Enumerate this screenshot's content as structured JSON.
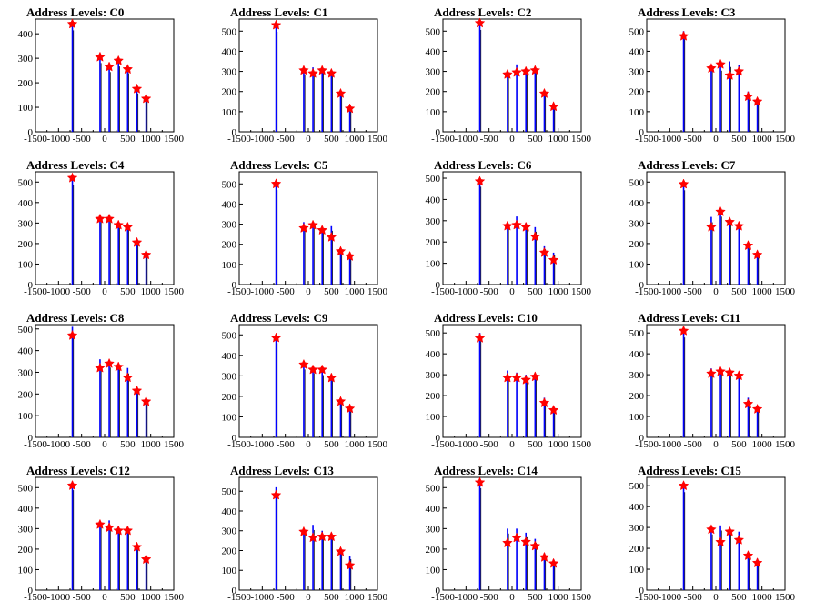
{
  "colors": {
    "spike": "#0000ff",
    "marker": "#ff0000",
    "secondary": "#000000",
    "axis": "#000000"
  },
  "chart_data": [
    {
      "type": "bar",
      "title": "Address Levels: C0",
      "xlim": [
        -1500,
        1500
      ],
      "xticks": [
        "-1500",
        "-1000",
        "-500",
        "0",
        "500",
        "1000",
        "1500"
      ],
      "ylim": [
        0,
        460
      ],
      "yticks": [
        "0",
        "100",
        "200",
        "300",
        "400"
      ],
      "x": [
        -700,
        -100,
        100,
        300,
        500,
        700,
        900
      ],
      "values": [
        450,
        305,
        265,
        290,
        260,
        170,
        135
      ],
      "peaks": [
        [
          -700,
          440
        ],
        [
          -100,
          305
        ],
        [
          100,
          265
        ],
        [
          300,
          290
        ],
        [
          500,
          255
        ],
        [
          700,
          175
        ],
        [
          900,
          135
        ]
      ]
    },
    {
      "type": "bar",
      "title": "Address Levels: C1",
      "xlim": [
        -1500,
        1500
      ],
      "xticks": [
        "-1500",
        "-1000",
        "-500",
        "0",
        "500",
        "1000",
        "1500"
      ],
      "ylim": [
        0,
        560
      ],
      "yticks": [
        "0",
        "100",
        "200",
        "300",
        "400",
        "500"
      ],
      "x": [
        -700,
        -100,
        100,
        300,
        500,
        700,
        900
      ],
      "values": [
        540,
        310,
        320,
        320,
        300,
        200,
        120
      ],
      "peaks": [
        [
          -700,
          530
        ],
        [
          -100,
          305
        ],
        [
          100,
          290
        ],
        [
          300,
          305
        ],
        [
          500,
          290
        ],
        [
          700,
          190
        ],
        [
          900,
          115
        ]
      ]
    },
    {
      "type": "bar",
      "title": "Address Levels: C2",
      "xlim": [
        -1500,
        1500
      ],
      "xticks": [
        "-1500",
        "-1000",
        "-500",
        "0",
        "500",
        "1000",
        "1500"
      ],
      "ylim": [
        0,
        560
      ],
      "yticks": [
        "0",
        "100",
        "200",
        "300",
        "400",
        "500"
      ],
      "x": [
        -700,
        -100,
        100,
        300,
        500,
        700,
        900
      ],
      "values": [
        550,
        300,
        335,
        310,
        320,
        200,
        130
      ],
      "peaks": [
        [
          -700,
          540
        ],
        [
          -100,
          285
        ],
        [
          100,
          295
        ],
        [
          300,
          300
        ],
        [
          500,
          305
        ],
        [
          700,
          190
        ],
        [
          900,
          125
        ]
      ]
    },
    {
      "type": "bar",
      "title": "Address Levels: C3",
      "xlim": [
        -1500,
        1500
      ],
      "xticks": [
        "-1500",
        "-1000",
        "-500",
        "0",
        "500",
        "1000",
        "1500"
      ],
      "ylim": [
        0,
        560
      ],
      "yticks": [
        "0",
        "100",
        "200",
        "300",
        "400",
        "500"
      ],
      "x": [
        -700,
        -100,
        100,
        300,
        500,
        700,
        900
      ],
      "values": [
        500,
        330,
        330,
        350,
        330,
        200,
        160
      ],
      "peaks": [
        [
          -700,
          475
        ],
        [
          -100,
          315
        ],
        [
          100,
          335
        ],
        [
          300,
          280
        ],
        [
          500,
          300
        ],
        [
          700,
          175
        ],
        [
          900,
          150
        ]
      ]
    },
    {
      "type": "bar",
      "title": "Address Levels: C4",
      "xlim": [
        -1500,
        1500
      ],
      "xticks": [
        "-1500",
        "-1000",
        "-500",
        "0",
        "500",
        "1000",
        "1500"
      ],
      "ylim": [
        0,
        550
      ],
      "yticks": [
        "0",
        "100",
        "200",
        "300",
        "400",
        "500"
      ],
      "x": [
        -700,
        -100,
        100,
        300,
        500,
        700,
        900
      ],
      "values": [
        530,
        330,
        330,
        300,
        290,
        210,
        150
      ],
      "peaks": [
        [
          -700,
          520
        ],
        [
          -100,
          320
        ],
        [
          100,
          320
        ],
        [
          300,
          290
        ],
        [
          500,
          280
        ],
        [
          700,
          205
        ],
        [
          900,
          145
        ]
      ]
    },
    {
      "type": "bar",
      "title": "Address Levels: C5",
      "xlim": [
        -1500,
        1500
      ],
      "xticks": [
        "-1500",
        "-1000",
        "-500",
        "0",
        "500",
        "1000",
        "1500"
      ],
      "ylim": [
        0,
        560
      ],
      "yticks": [
        "0",
        "100",
        "200",
        "300",
        "400",
        "500"
      ],
      "x": [
        -700,
        -100,
        100,
        300,
        500,
        700,
        900
      ],
      "values": [
        510,
        310,
        310,
        290,
        290,
        180,
        150
      ],
      "peaks": [
        [
          -700,
          500
        ],
        [
          -100,
          280
        ],
        [
          100,
          295
        ],
        [
          300,
          270
        ],
        [
          500,
          235
        ],
        [
          700,
          165
        ],
        [
          900,
          140
        ]
      ]
    },
    {
      "type": "bar",
      "title": "Address Levels: C6",
      "xlim": [
        -1500,
        1500
      ],
      "xticks": [
        "-1500",
        "-1000",
        "-500",
        "0",
        "500",
        "1000",
        "1500"
      ],
      "ylim": [
        0,
        530
      ],
      "yticks": [
        "0",
        "100",
        "200",
        "300",
        "400",
        "500"
      ],
      "x": [
        -700,
        -100,
        100,
        300,
        500,
        700,
        900
      ],
      "values": [
        500,
        290,
        320,
        290,
        270,
        180,
        150
      ],
      "peaks": [
        [
          -700,
          485
        ],
        [
          -100,
          275
        ],
        [
          100,
          280
        ],
        [
          300,
          270
        ],
        [
          500,
          225
        ],
        [
          700,
          150
        ],
        [
          900,
          115
        ]
      ]
    },
    {
      "type": "bar",
      "title": "Address Levels: C7",
      "xlim": [
        -1500,
        1500
      ],
      "xticks": [
        "-1500",
        "-1000",
        "-500",
        "0",
        "500",
        "1000",
        "1500"
      ],
      "ylim": [
        0,
        550
      ],
      "yticks": [
        "0",
        "100",
        "200",
        "300",
        "400",
        "500"
      ],
      "x": [
        -700,
        -100,
        100,
        300,
        500,
        700,
        900
      ],
      "values": [
        500,
        330,
        360,
        320,
        300,
        200,
        160
      ],
      "peaks": [
        [
          -700,
          490
        ],
        [
          -100,
          280
        ],
        [
          100,
          355
        ],
        [
          300,
          305
        ],
        [
          500,
          285
        ],
        [
          700,
          190
        ],
        [
          900,
          145
        ]
      ]
    },
    {
      "type": "bar",
      "title": "Address Levels: C8",
      "xlim": [
        -1500,
        1500
      ],
      "xticks": [
        "-1500",
        "-1000",
        "-500",
        "0",
        "500",
        "1000",
        "1500"
      ],
      "ylim": [
        0,
        520
      ],
      "yticks": [
        "0",
        "100",
        "200",
        "300",
        "400",
        "500"
      ],
      "x": [
        -700,
        -100,
        100,
        300,
        500,
        700,
        900
      ],
      "values": [
        510,
        360,
        350,
        340,
        320,
        230,
        180
      ],
      "peaks": [
        [
          -700,
          470
        ],
        [
          -100,
          320
        ],
        [
          100,
          340
        ],
        [
          300,
          325
        ],
        [
          500,
          275
        ],
        [
          700,
          215
        ],
        [
          900,
          165
        ]
      ]
    },
    {
      "type": "bar",
      "title": "Address Levels: C9",
      "xlim": [
        -1500,
        1500
      ],
      "xticks": [
        "-1500",
        "-1000",
        "-500",
        "0",
        "500",
        "1000",
        "1500"
      ],
      "ylim": [
        0,
        550
      ],
      "yticks": [
        "0",
        "100",
        "200",
        "300",
        "400",
        "500"
      ],
      "x": [
        -700,
        -100,
        100,
        300,
        500,
        700,
        900
      ],
      "values": [
        500,
        360,
        340,
        330,
        300,
        190,
        150
      ],
      "peaks": [
        [
          -700,
          485
        ],
        [
          -100,
          355
        ],
        [
          100,
          330
        ],
        [
          300,
          330
        ],
        [
          500,
          290
        ],
        [
          700,
          175
        ],
        [
          900,
          140
        ]
      ]
    },
    {
      "type": "bar",
      "title": "Address Levels: C10",
      "xlim": [
        -1500,
        1500
      ],
      "xticks": [
        "-1500",
        "-1000",
        "-500",
        "0",
        "500",
        "1000",
        "1500"
      ],
      "ylim": [
        0,
        540
      ],
      "yticks": [
        "0",
        "100",
        "200",
        "300",
        "400",
        "500"
      ],
      "x": [
        -700,
        -100,
        100,
        300,
        500,
        700,
        900
      ],
      "values": [
        500,
        320,
        310,
        300,
        300,
        190,
        150
      ],
      "peaks": [
        [
          -700,
          475
        ],
        [
          -100,
          285
        ],
        [
          100,
          285
        ],
        [
          300,
          275
        ],
        [
          500,
          290
        ],
        [
          700,
          165
        ],
        [
          900,
          130
        ]
      ]
    },
    {
      "type": "bar",
      "title": "Address Levels: C11",
      "xlim": [
        -1500,
        1500
      ],
      "xticks": [
        "-1500",
        "-1000",
        "-500",
        "0",
        "500",
        "1000",
        "1500"
      ],
      "ylim": [
        0,
        540
      ],
      "yticks": [
        "0",
        "100",
        "200",
        "300",
        "400",
        "500"
      ],
      "x": [
        -700,
        -100,
        100,
        300,
        500,
        700,
        900
      ],
      "values": [
        520,
        330,
        330,
        320,
        310,
        190,
        150
      ],
      "peaks": [
        [
          -700,
          510
        ],
        [
          -100,
          305
        ],
        [
          100,
          315
        ],
        [
          300,
          310
        ],
        [
          500,
          295
        ],
        [
          700,
          160
        ],
        [
          900,
          135
        ]
      ]
    },
    {
      "type": "bar",
      "title": "Address Levels: C12",
      "xlim": [
        -1500,
        1500
      ],
      "xticks": [
        "-1500",
        "-1000",
        "-500",
        "0",
        "500",
        "1000",
        "1500"
      ],
      "ylim": [
        0,
        550
      ],
      "yticks": [
        "0",
        "100",
        "200",
        "300",
        "400",
        "500"
      ],
      "x": [
        -700,
        -100,
        100,
        300,
        500,
        700,
        900
      ],
      "values": [
        530,
        330,
        340,
        310,
        300,
        220,
        160
      ],
      "peaks": [
        [
          -700,
          510
        ],
        [
          -100,
          320
        ],
        [
          100,
          305
        ],
        [
          300,
          290
        ],
        [
          500,
          290
        ],
        [
          700,
          210
        ],
        [
          900,
          150
        ]
      ]
    },
    {
      "type": "bar",
      "title": "Address Levels: C13",
      "xlim": [
        -1500,
        1500
      ],
      "xticks": [
        "-1500",
        "-1000",
        "-500",
        "0",
        "500",
        "1000",
        "1500"
      ],
      "ylim": [
        0,
        570
      ],
      "yticks": [
        "0",
        "100",
        "200",
        "300",
        "400",
        "500"
      ],
      "x": [
        -700,
        -100,
        100,
        300,
        500,
        700,
        900
      ],
      "values": [
        520,
        310,
        330,
        300,
        290,
        210,
        170
      ],
      "peaks": [
        [
          -700,
          480
        ],
        [
          -100,
          295
        ],
        [
          100,
          265
        ],
        [
          300,
          270
        ],
        [
          500,
          270
        ],
        [
          700,
          195
        ],
        [
          900,
          125
        ]
      ]
    },
    {
      "type": "bar",
      "title": "Address Levels: C14",
      "xlim": [
        -1500,
        1500
      ],
      "xticks": [
        "-1500",
        "-1000",
        "-500",
        "0",
        "500",
        "1000",
        "1500"
      ],
      "ylim": [
        0,
        550
      ],
      "yticks": [
        "0",
        "100",
        "200",
        "300",
        "400",
        "500"
      ],
      "x": [
        -700,
        -100,
        100,
        300,
        500,
        700,
        900
      ],
      "values": [
        540,
        300,
        300,
        280,
        250,
        180,
        150
      ],
      "peaks": [
        [
          -700,
          525
        ],
        [
          -100,
          230
        ],
        [
          100,
          255
        ],
        [
          300,
          235
        ],
        [
          500,
          215
        ],
        [
          700,
          160
        ],
        [
          900,
          130
        ]
      ]
    },
    {
      "type": "bar",
      "title": "Address Levels: C15",
      "xlim": [
        -1500,
        1500
      ],
      "xticks": [
        "-1500",
        "-1000",
        "-500",
        "0",
        "500",
        "1000",
        "1500"
      ],
      "ylim": [
        0,
        540
      ],
      "yticks": [
        "0",
        "100",
        "200",
        "300",
        "400",
        "500"
      ],
      "x": [
        -700,
        -100,
        100,
        300,
        500,
        700,
        900
      ],
      "values": [
        510,
        290,
        310,
        300,
        280,
        180,
        150
      ],
      "peaks": [
        [
          -700,
          500
        ],
        [
          -100,
          290
        ],
        [
          100,
          230
        ],
        [
          300,
          280
        ],
        [
          500,
          240
        ],
        [
          700,
          165
        ],
        [
          900,
          130
        ]
      ]
    }
  ]
}
